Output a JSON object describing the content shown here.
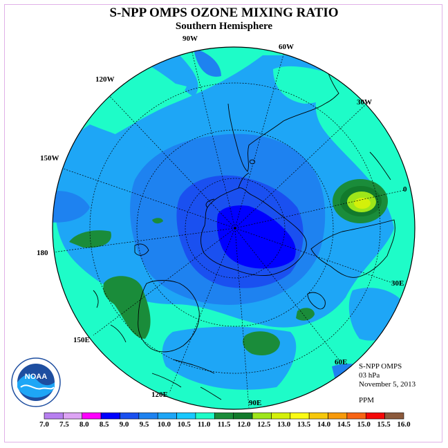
{
  "title": "S-NPP OMPS OZONE MIXING RATIO",
  "subtitle": "Southern Hemisphere",
  "longitude_labels": [
    "90W",
    "60W",
    "120W",
    "30W",
    "150W",
    "0",
    "180",
    "30E",
    "150E",
    "60E",
    "120E",
    "90E"
  ],
  "info": {
    "instrument": "S-NPP OMPS",
    "level": "03 hPa",
    "date": "November 5, 2013",
    "units": "PPM"
  },
  "logo": {
    "text": "NOAA"
  },
  "colorbar": {
    "labels": [
      "7.0",
      "7.5",
      "8.0",
      "8.5",
      "9.0",
      "9.5",
      "10.0",
      "10.5",
      "11.0",
      "11.5",
      "12.0",
      "12.5",
      "13.0",
      "13.5",
      "14.0",
      "14.5",
      "15.0",
      "15.5",
      "16.0"
    ],
    "colors": [
      "#b77ff0",
      "#dda4f4",
      "#ff00ff",
      "#0000ff",
      "#1a50f0",
      "#1e82f0",
      "#1ea6f6",
      "#18c8ff",
      "#1efcc8",
      "#1a8c3a",
      "#127a2c",
      "#9ee61a",
      "#d4f00a",
      "#fbfb14",
      "#f7c80a",
      "#f79a0a",
      "#f76414",
      "#f40808",
      "#8c5a3c"
    ]
  },
  "map": {
    "projection": "polar-stereographic-south",
    "colors": {
      "background": "#1efcc8",
      "blue_10_0": "#1ea6f6",
      "blue_9_5": "#1e82f0",
      "blue_9_0": "#1a50f0",
      "blue_8_5": "#0000ff",
      "green_11_5": "#1a8c3a",
      "green_12_0": "#127a2c",
      "yellow_12_5": "#9ee61a",
      "yellow_13_0": "#d4f00a"
    }
  }
}
